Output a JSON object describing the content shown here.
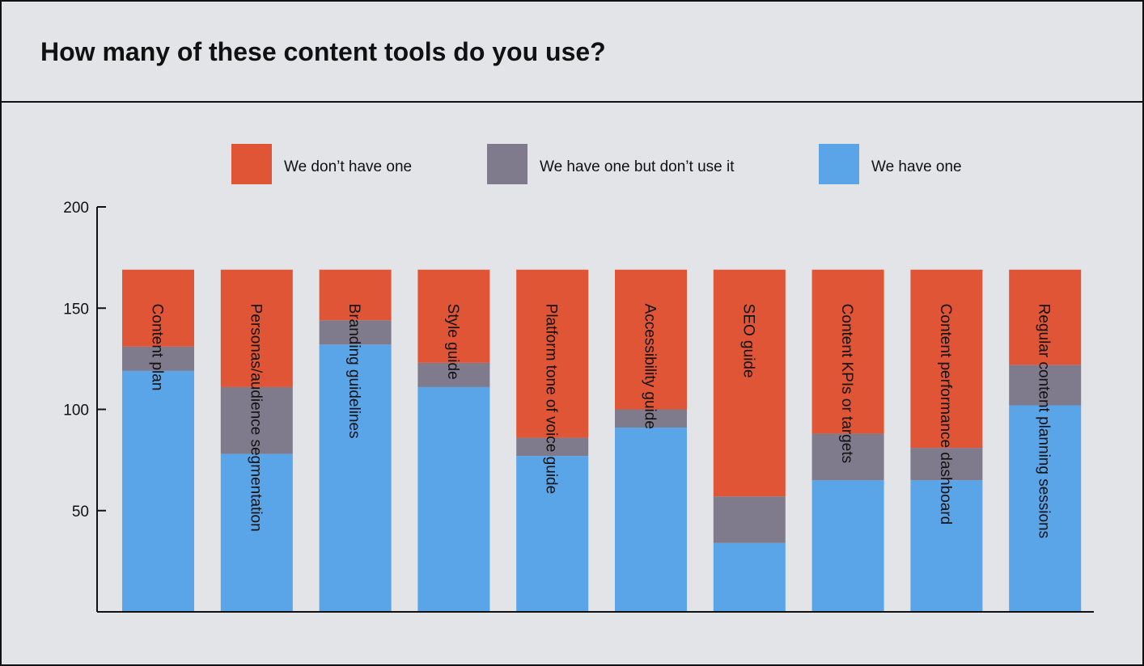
{
  "chart_data": {
    "type": "bar",
    "stacked": true,
    "title": "How many of these content tools do you use?",
    "categories": [
      "Content plan",
      "Personas/audience segmentation",
      "Branding guidelines",
      "Style guide",
      "Platform tone of voice guide",
      "Accessibility guide",
      "SEO guide",
      "Content KPIs or targets",
      "Content performance dashboard",
      "Regular content planning sessions"
    ],
    "series": [
      {
        "name": "We have one",
        "color": "#5aa4e8",
        "values": [
          119,
          78,
          132,
          111,
          77,
          91,
          34,
          65,
          65,
          102
        ]
      },
      {
        "name": "We have one but don’t use it",
        "color": "#807b8c",
        "values": [
          12,
          33,
          12,
          12,
          9,
          9,
          23,
          23,
          16,
          20
        ]
      },
      {
        "name": "We don’t have one",
        "color": "#e05535",
        "values": [
          38,
          58,
          25,
          46,
          83,
          69,
          112,
          81,
          88,
          47
        ]
      }
    ],
    "legend_order": [
      "We don’t have one",
      "We have one but don’t use it",
      "We have one"
    ],
    "yticks": [
      50,
      100,
      150,
      200
    ],
    "ylim": [
      0,
      200
    ],
    "grid": false,
    "legend_position": "top"
  }
}
